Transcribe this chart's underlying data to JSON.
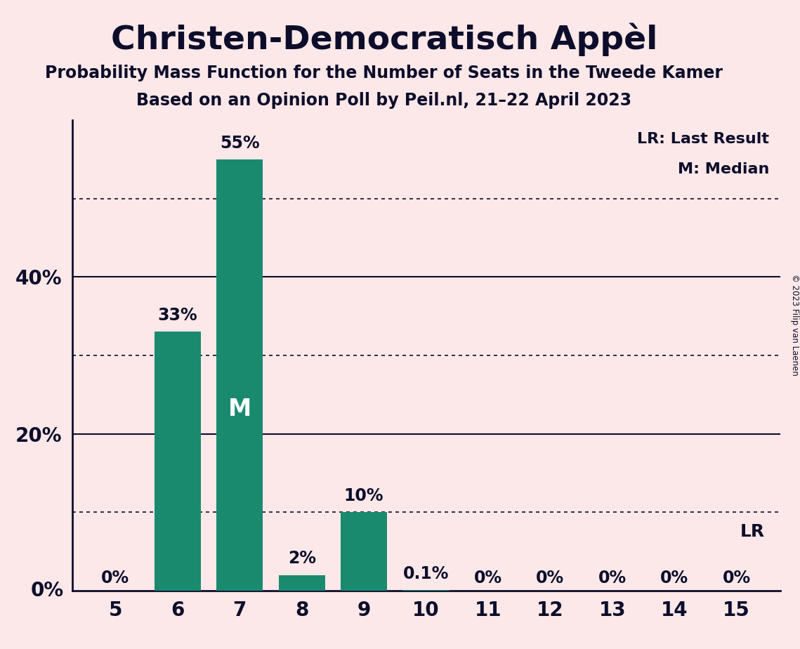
{
  "title": "Christen-Democratisch Appèl",
  "subtitle1": "Probability Mass Function for the Number of Seats in the Tweede Kamer",
  "subtitle2": "Based on an Opinion Poll by Peil.nl, 21–22 April 2023",
  "copyright": "© 2023 Filip van Laenen",
  "legend_lr": "LR: Last Result",
  "legend_m": "M: Median",
  "seats": [
    5,
    6,
    7,
    8,
    9,
    10,
    11,
    12,
    13,
    14,
    15
  ],
  "probabilities": [
    0.0,
    33.0,
    55.0,
    2.0,
    10.0,
    0.1,
    0.0,
    0.0,
    0.0,
    0.0,
    0.0
  ],
  "bar_labels": [
    "0%",
    "33%",
    "55%",
    "2%",
    "10%",
    "0.1%",
    "0%",
    "0%",
    "0%",
    "0%",
    "0%"
  ],
  "bar_color": "#1a8a6e",
  "background_color": "#fce8e8",
  "text_color": "#0d0d2b",
  "median_seat": 7,
  "lr_seat": 15,
  "lr_label": "LR",
  "median_label": "M",
  "ylim": [
    0,
    60
  ],
  "yticks": [
    0,
    20,
    40
  ],
  "ytick_labels": [
    "",
    "20%",
    "40%"
  ],
  "dotted_yticks": [
    10,
    30,
    50
  ],
  "bar_width": 0.75
}
